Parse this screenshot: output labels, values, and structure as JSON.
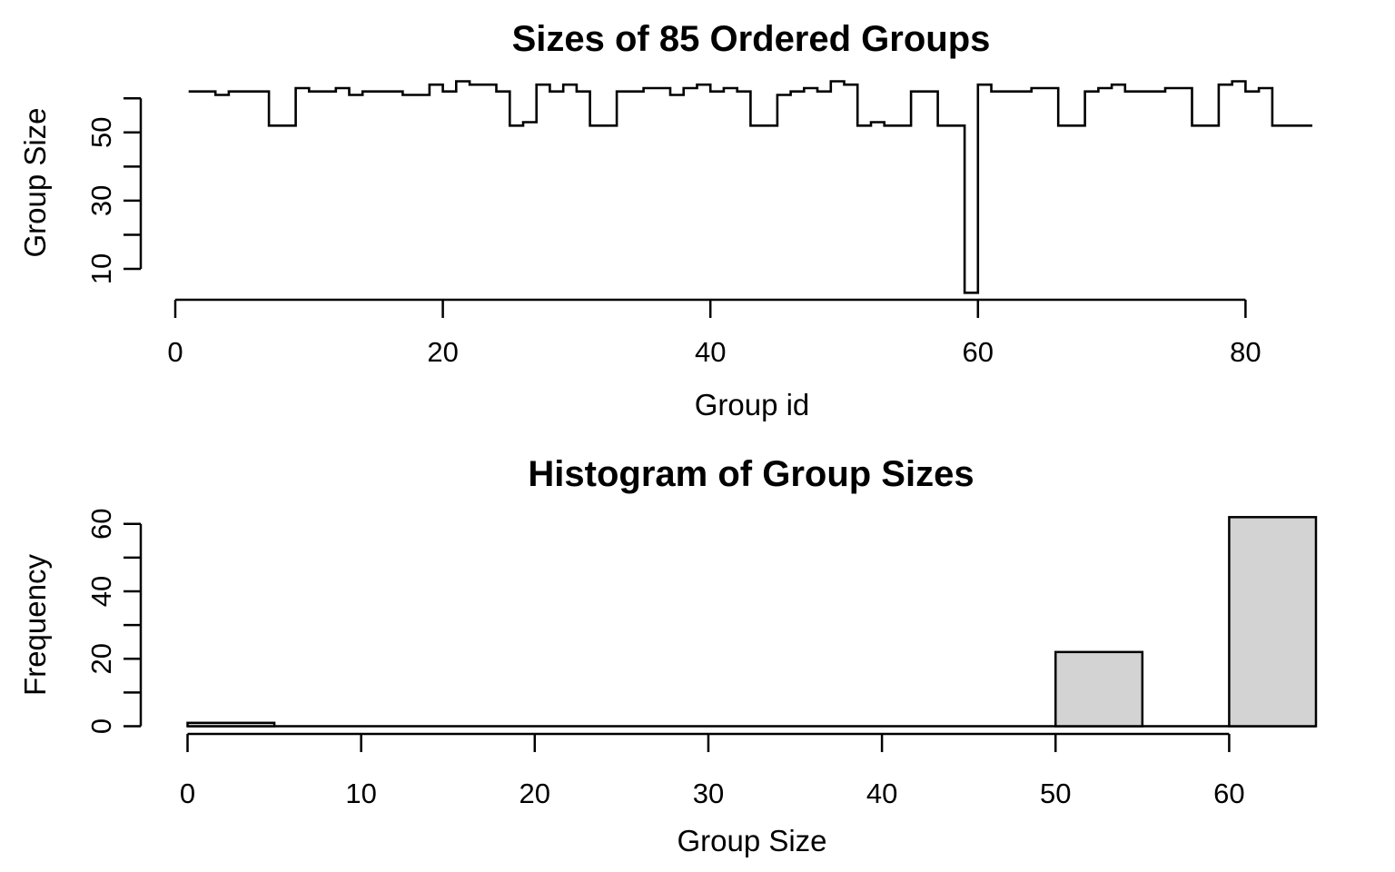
{
  "page": {
    "background": "#ffffff",
    "foreground": "#000000"
  },
  "chart_data": [
    {
      "id": "step-plot",
      "type": "line",
      "line_type": "step",
      "title": "Sizes of 85 Ordered Groups",
      "xlabel": "Group id",
      "ylabel": "Group Size",
      "n_groups": 85,
      "x_start": 1,
      "group_sizes": [
        62,
        62,
        61,
        62,
        62,
        62,
        52,
        52,
        63,
        62,
        62,
        63,
        61,
        62,
        62,
        62,
        61,
        61,
        64,
        62,
        65,
        64,
        64,
        62,
        52,
        53,
        64,
        62,
        64,
        62,
        52,
        52,
        62,
        62,
        63,
        63,
        61,
        63,
        64,
        62,
        63,
        62,
        52,
        52,
        61,
        62,
        63,
        62,
        65,
        64,
        52,
        53,
        52,
        52,
        62,
        62,
        52,
        52,
        3,
        64,
        62,
        62,
        62,
        63,
        63,
        52,
        52,
        62,
        63,
        64,
        62,
        62,
        62,
        63,
        63,
        52,
        52,
        64,
        65,
        62,
        63,
        52,
        52,
        52,
        52
      ],
      "xlim": [
        0,
        85
      ],
      "ylim": [
        3,
        65
      ],
      "xticks_labeled": [
        0,
        20,
        40,
        60,
        80
      ],
      "yticks": [
        10,
        20,
        30,
        40,
        50,
        60
      ],
      "yticks_labeled": [
        10,
        30,
        50
      ],
      "line_color": "#000000",
      "grid": "off",
      "legend": "none"
    },
    {
      "id": "histogram",
      "type": "bar",
      "title": "Histogram of Group Sizes",
      "xlabel": "Group Size",
      "ylabel": "Frequency",
      "bin_width": 5,
      "bins": [
        {
          "from": 0,
          "to": 5,
          "count": 1
        },
        {
          "from": 5,
          "to": 10,
          "count": 0
        },
        {
          "from": 10,
          "to": 15,
          "count": 0
        },
        {
          "from": 15,
          "to": 20,
          "count": 0
        },
        {
          "from": 20,
          "to": 25,
          "count": 0
        },
        {
          "from": 25,
          "to": 30,
          "count": 0
        },
        {
          "from": 30,
          "to": 35,
          "count": 0
        },
        {
          "from": 35,
          "to": 40,
          "count": 0
        },
        {
          "from": 40,
          "to": 45,
          "count": 0
        },
        {
          "from": 45,
          "to": 50,
          "count": 0
        },
        {
          "from": 50,
          "to": 55,
          "count": 22
        },
        {
          "from": 55,
          "to": 60,
          "count": 0
        },
        {
          "from": 60,
          "to": 65,
          "count": 62
        }
      ],
      "total_count": 85,
      "xlim": [
        0,
        65
      ],
      "ylim": [
        0,
        62
      ],
      "xticks_labeled": [
        0,
        10,
        20,
        30,
        40,
        50,
        60
      ],
      "yticks": [
        0,
        10,
        20,
        30,
        40,
        50,
        60
      ],
      "yticks_labeled": [
        0,
        20,
        40,
        60
      ],
      "bar_fill": "#d3d3d3",
      "bar_stroke": "#000000",
      "grid": "off",
      "legend": "none"
    }
  ]
}
